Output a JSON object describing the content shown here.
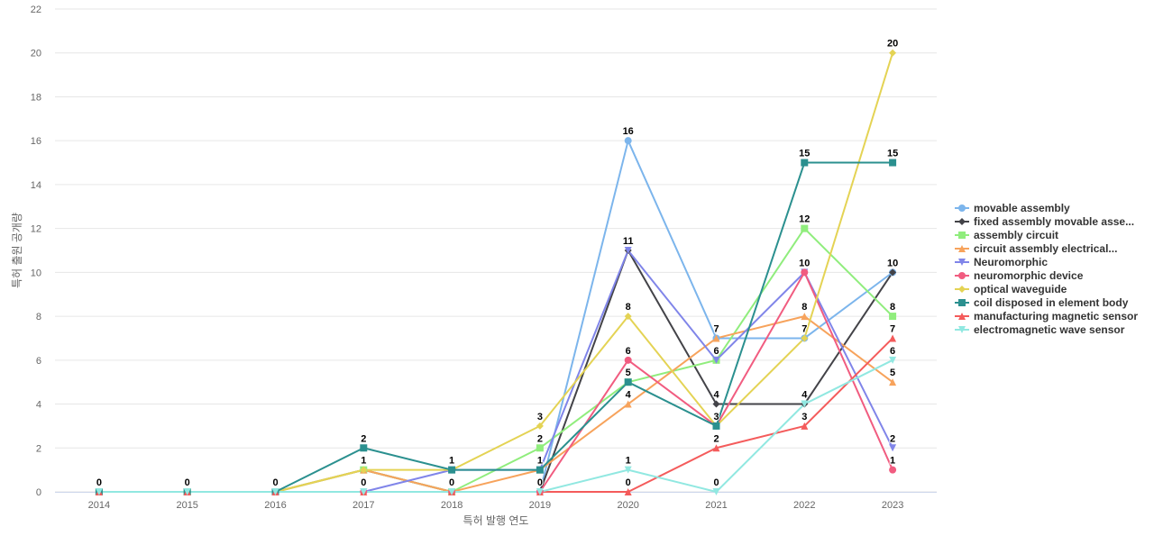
{
  "chart_data": {
    "type": "line",
    "title": "",
    "xlabel": "특허 발행 연도",
    "ylabel": "특허 출원 공개량",
    "ylim": [
      0,
      22
    ],
    "yticks": [
      0,
      2,
      4,
      6,
      8,
      10,
      12,
      14,
      16,
      18,
      20,
      22
    ],
    "grid": true,
    "legend_position": "right",
    "categories": [
      "2014",
      "2015",
      "2016",
      "2017",
      "2018",
      "2019",
      "2020",
      "2021",
      "2022",
      "2023"
    ],
    "series": [
      {
        "name": "movable assembly",
        "color": "#7cb5ec",
        "marker": "circle",
        "values": [
          0,
          0,
          0,
          0,
          0,
          0,
          16,
          7,
          7,
          10
        ]
      },
      {
        "name": "fixed assembly movable asse...",
        "color": "#434348",
        "marker": "diamond",
        "values": [
          0,
          0,
          0,
          1,
          0,
          0,
          11,
          4,
          4,
          10
        ]
      },
      {
        "name": "assembly circuit",
        "color": "#90ed7d",
        "marker": "square",
        "values": [
          0,
          0,
          0,
          1,
          0,
          2,
          5,
          6,
          12,
          8
        ]
      },
      {
        "name": "circuit assembly electrical...",
        "color": "#f7a35c",
        "marker": "triangle",
        "values": [
          0,
          0,
          0,
          1,
          0,
          1,
          4,
          7,
          8,
          5
        ]
      },
      {
        "name": "Neuromorphic",
        "color": "#8085e9",
        "marker": "triangle-down",
        "values": [
          0,
          0,
          0,
          0,
          1,
          1,
          11,
          6,
          10,
          2
        ]
      },
      {
        "name": "neuromorphic device",
        "color": "#f15c80",
        "marker": "circle",
        "values": [
          0,
          0,
          0,
          0,
          0,
          0,
          6,
          3,
          10,
          1
        ]
      },
      {
        "name": "optical waveguide",
        "color": "#e4d354",
        "marker": "diamond",
        "values": [
          0,
          0,
          0,
          1,
          1,
          3,
          8,
          3,
          7,
          20
        ]
      },
      {
        "name": "coil disposed in element body",
        "color": "#2b908f",
        "marker": "square",
        "values": [
          0,
          0,
          0,
          2,
          1,
          1,
          5,
          3,
          15,
          15
        ]
      },
      {
        "name": "manufacturing magnetic sensor",
        "color": "#f45b5b",
        "marker": "triangle",
        "values": [
          0,
          0,
          0,
          0,
          0,
          0,
          0,
          2,
          3,
          7
        ]
      },
      {
        "name": "electromagnetic wave sensor",
        "color": "#91e8e1",
        "marker": "triangle-down",
        "values": [
          0,
          0,
          0,
          0,
          0,
          0,
          1,
          0,
          4,
          6
        ]
      }
    ],
    "data_labels": [
      {
        "category": "2014",
        "value": 0,
        "text": "0"
      },
      {
        "category": "2015",
        "value": 0,
        "text": "0"
      },
      {
        "category": "2016",
        "value": 0,
        "text": "0"
      },
      {
        "category": "2017",
        "value": 2,
        "text": "2"
      },
      {
        "category": "2017",
        "value": 1,
        "text": "1"
      },
      {
        "category": "2017",
        "value": 0,
        "text": "0"
      },
      {
        "category": "2018",
        "value": 1,
        "text": "1"
      },
      {
        "category": "2018",
        "value": 0,
        "text": "0"
      },
      {
        "category": "2019",
        "value": 3,
        "text": "3"
      },
      {
        "category": "2019",
        "value": 2,
        "text": "2"
      },
      {
        "category": "2019",
        "value": 1,
        "text": "1"
      },
      {
        "category": "2019",
        "value": 0,
        "text": "0"
      },
      {
        "category": "2020",
        "value": 16,
        "text": "16"
      },
      {
        "category": "2020",
        "value": 11,
        "text": "11"
      },
      {
        "category": "2020",
        "value": 8,
        "text": "8"
      },
      {
        "category": "2020",
        "value": 6,
        "text": "6"
      },
      {
        "category": "2020",
        "value": 5,
        "text": "5"
      },
      {
        "category": "2020",
        "value": 4,
        "text": "4"
      },
      {
        "category": "2020",
        "value": 1,
        "text": "1"
      },
      {
        "category": "2020",
        "value": 0,
        "text": "0"
      },
      {
        "category": "2021",
        "value": 7,
        "text": "7"
      },
      {
        "category": "2021",
        "value": 6,
        "text": "6"
      },
      {
        "category": "2021",
        "value": 4,
        "text": "4"
      },
      {
        "category": "2021",
        "value": 3,
        "text": "3"
      },
      {
        "category": "2021",
        "value": 2,
        "text": "2"
      },
      {
        "category": "2021",
        "value": 0,
        "text": "0"
      },
      {
        "category": "2022",
        "value": 15,
        "text": "15"
      },
      {
        "category": "2022",
        "value": 12,
        "text": "12"
      },
      {
        "category": "2022",
        "value": 10,
        "text": "10"
      },
      {
        "category": "2022",
        "value": 8,
        "text": "8"
      },
      {
        "category": "2022",
        "value": 7,
        "text": "7"
      },
      {
        "category": "2022",
        "value": 4,
        "text": "4"
      },
      {
        "category": "2022",
        "value": 3,
        "text": "3"
      },
      {
        "category": "2023",
        "value": 20,
        "text": "20"
      },
      {
        "category": "2023",
        "value": 15,
        "text": "15"
      },
      {
        "category": "2023",
        "value": 10,
        "text": "10"
      },
      {
        "category": "2023",
        "value": 8,
        "text": "8"
      },
      {
        "category": "2023",
        "value": 7,
        "text": "7"
      },
      {
        "category": "2023",
        "value": 6,
        "text": "6"
      },
      {
        "category": "2023",
        "value": 5,
        "text": "5"
      },
      {
        "category": "2023",
        "value": 2,
        "text": "2"
      },
      {
        "category": "2023",
        "value": 1,
        "text": "1"
      }
    ]
  }
}
